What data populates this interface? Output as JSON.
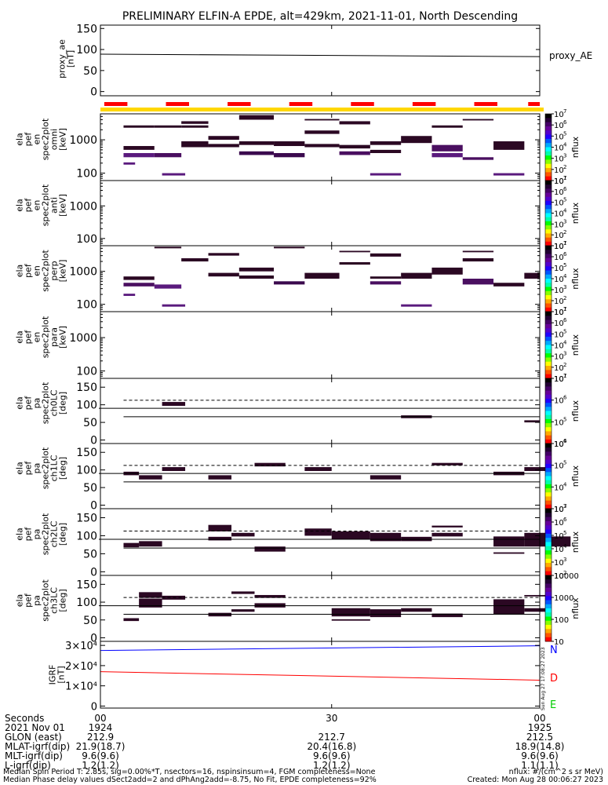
{
  "title": "PRELIMINARY ELFIN-A EPDE, alt=429km, 2021-11-01, North Descending",
  "time_axis": {
    "start_seconds": 0,
    "end_seconds": 57,
    "ticks": [
      0,
      30,
      57
    ]
  },
  "footer": {
    "rows": [
      {
        "label": "Seconds",
        "values": [
          "00",
          "30",
          "00"
        ]
      },
      {
        "label": "2021 Nov 01",
        "values": [
          "1924",
          "",
          "1925"
        ]
      },
      {
        "label": "GLON (east)",
        "values": [
          "212.9",
          "212.7",
          "212.5"
        ]
      },
      {
        "label": "MLAT-igrf(dip)",
        "values": [
          "21.9(18.7)",
          "20.4(16.8)",
          "18.9(14.8)"
        ]
      },
      {
        "label": "MLT-igrf(dip)",
        "values": [
          "9.6(9.6)",
          "9.6(9.6)",
          "9.6(9.6)"
        ]
      },
      {
        "label": "L-igrf(dip)",
        "values": [
          "1.2(1.2)",
          "1.2(1.2)",
          "1.1(1.1)"
        ]
      }
    ],
    "note1": "Median Spin Period T: 2.85s, sig=0.00%*T, nsectors=16, nspinsinsum=4, FGM completeness=None",
    "note2": "Median Phase delay values dSect2add=2 and dPhAng2add=-8.75, No Fit, EPDE completeness=92%",
    "units_note": "nflux: #/(cm^2 s sr MeV)",
    "created": "Created: Mon Aug 28 00:06:27 2023",
    "side_stamp": "Sun Aug 27 17:08:27 2023"
  },
  "chart_data": [
    {
      "type": "line",
      "name": "proxy_ae",
      "ylabel": "proxy_ae [nT]",
      "legend": "proxy_AE",
      "yticks": [
        0,
        50,
        100,
        150
      ],
      "ylim": [
        -10,
        158
      ],
      "x": [
        0,
        57
      ],
      "y": [
        89,
        83
      ]
    },
    {
      "type": "bar",
      "name": "sector-indicator",
      "color_bar": "#ffd700",
      "color_marks": "#ff0000",
      "marks": [
        [
          0.5,
          3.5
        ],
        [
          8.5,
          11.5
        ],
        [
          16.5,
          19.5
        ],
        [
          24.5,
          27.5
        ],
        [
          32.5,
          35.5
        ],
        [
          40.5,
          43.5
        ],
        [
          48.5,
          51.5
        ],
        [
          55.5,
          57
        ]
      ]
    },
    {
      "type": "heatmap",
      "name": "spec-omni",
      "ylabel": "ela pef en spec2plot omni [keV]",
      "yscale": "log",
      "ylim": [
        60,
        6000
      ],
      "yticks": [
        100,
        1000
      ],
      "colorbar": {
        "label": "nflux",
        "ticks": [
          "10",
          "10",
          "10",
          "10",
          "10",
          "10",
          "10"
        ],
        "exps": [
          "1",
          "2",
          "3",
          "4",
          "5",
          "6",
          "7"
        ]
      },
      "cells": [
        [
          3,
          7,
          2300,
          2700,
          "#2b0823"
        ],
        [
          3,
          7,
          500,
          650,
          "#2b0823"
        ],
        [
          3,
          7,
          300,
          400,
          "#5a1a7d"
        ],
        [
          3,
          4.5,
          180,
          210,
          "#5a1a7d"
        ],
        [
          7,
          10.5,
          2300,
          2700,
          "#2b0823"
        ],
        [
          10.5,
          14,
          2300,
          2700,
          "#2b0823"
        ],
        [
          7,
          10.5,
          300,
          400,
          "#4a0f60"
        ],
        [
          10.5,
          14,
          600,
          900,
          "#2b0823"
        ],
        [
          10.5,
          14,
          3000,
          3600,
          "#2b0823"
        ],
        [
          14,
          18,
          1000,
          1300,
          "#2b0823"
        ],
        [
          14,
          18,
          600,
          750,
          "#2b0823"
        ],
        [
          18,
          22.5,
          4000,
          5500,
          "#2b0823"
        ],
        [
          18,
          22.5,
          700,
          900,
          "#2b0823"
        ],
        [
          18,
          22.5,
          350,
          450,
          "#3b0a4e"
        ],
        [
          22.5,
          26.5,
          650,
          900,
          "#2b0823"
        ],
        [
          22.5,
          26.5,
          300,
          400,
          "#3b0a4e"
        ],
        [
          26.5,
          31,
          3800,
          4200,
          "#2b0823"
        ],
        [
          26.5,
          31,
          1500,
          1900,
          "#2b0823"
        ],
        [
          26.5,
          31,
          600,
          750,
          "#2b0823"
        ],
        [
          31,
          35,
          2900,
          3600,
          "#2b0823"
        ],
        [
          31,
          35,
          550,
          700,
          "#2b0823"
        ],
        [
          31,
          35,
          350,
          450,
          "#4a0f60"
        ],
        [
          35,
          39,
          700,
          900,
          "#2b0823"
        ],
        [
          35,
          39,
          400,
          500,
          "#2b0823"
        ],
        [
          39,
          43,
          800,
          1300,
          "#2b0823"
        ],
        [
          43,
          47,
          2300,
          2700,
          "#2b0823"
        ],
        [
          43,
          47,
          450,
          700,
          "#4a0f60"
        ],
        [
          43,
          47,
          300,
          400,
          "#5a1a7d"
        ],
        [
          47,
          51,
          3800,
          4200,
          "#2b0823"
        ],
        [
          47,
          51,
          250,
          300,
          "#4a0f60"
        ],
        [
          51,
          55,
          500,
          900,
          "#2b0823"
        ],
        [
          8,
          11,
          85,
          100,
          "#5a1a7d"
        ],
        [
          35,
          39,
          85,
          100,
          "#5a1a7d"
        ],
        [
          51,
          55,
          85,
          100,
          "#5a1a7d"
        ]
      ]
    },
    {
      "type": "heatmap",
      "name": "spec-anti",
      "ylabel": "ela pef en spec2plot anti [keV]",
      "yscale": "log",
      "ylim": [
        60,
        6000
      ],
      "yticks": [
        100,
        1000
      ],
      "colorbar": {
        "label": "nflux",
        "ticks": [
          "10",
          "10",
          "10",
          "10",
          "10",
          "10",
          "10"
        ],
        "exps": [
          "1",
          "2",
          "3",
          "4",
          "5",
          "6",
          "7"
        ]
      },
      "cells": []
    },
    {
      "type": "heatmap",
      "name": "spec-perp",
      "ylabel": "ela pef en spec2plot perp [keV]",
      "yscale": "log",
      "ylim": [
        60,
        6000
      ],
      "yticks": [
        100,
        1000
      ],
      "colorbar": {
        "label": "nflux",
        "ticks": [
          "10",
          "10",
          "10",
          "10",
          "10",
          "10",
          "10"
        ],
        "exps": [
          "1",
          "2",
          "3",
          "4",
          "5",
          "6",
          "7"
        ]
      },
      "cells": [
        [
          7,
          10.5,
          5000,
          5600,
          "#2b0823"
        ],
        [
          10.5,
          14,
          2000,
          2500,
          "#2b0823"
        ],
        [
          3,
          7,
          550,
          700,
          "#2b0823"
        ],
        [
          3,
          7,
          350,
          450,
          "#4a0f60"
        ],
        [
          7,
          10.5,
          300,
          400,
          "#5a1a7d"
        ],
        [
          3,
          4.5,
          180,
          210,
          "#5a1a7d"
        ],
        [
          14,
          18,
          3000,
          3600,
          "#2b0823"
        ],
        [
          14,
          18,
          700,
          900,
          "#2b0823"
        ],
        [
          18,
          22.5,
          1000,
          1300,
          "#2b0823"
        ],
        [
          18,
          22.5,
          600,
          750,
          "#2b0823"
        ],
        [
          22.5,
          26.5,
          5000,
          5600,
          "#2b0823"
        ],
        [
          22.5,
          26.5,
          400,
          500,
          "#3b0a4e"
        ],
        [
          26.5,
          31,
          600,
          900,
          "#2b0823"
        ],
        [
          31,
          35,
          3800,
          4200,
          "#2b0823"
        ],
        [
          31,
          35,
          1600,
          1900,
          "#2b0823"
        ],
        [
          35,
          39,
          2800,
          3500,
          "#2b0823"
        ],
        [
          35,
          39,
          600,
          700,
          "#2b0823"
        ],
        [
          35,
          39,
          400,
          500,
          "#4a0f60"
        ],
        [
          39,
          43,
          600,
          900,
          "#2b0823"
        ],
        [
          43,
          47,
          800,
          1300,
          "#2b0823"
        ],
        [
          47,
          51,
          3800,
          4200,
          "#2b0823"
        ],
        [
          47,
          51,
          2000,
          2500,
          "#2b0823"
        ],
        [
          47,
          51,
          400,
          600,
          "#4a0f60"
        ],
        [
          51,
          55,
          350,
          450,
          "#2b0823"
        ],
        [
          55,
          57,
          600,
          900,
          "#2b0823"
        ],
        [
          8,
          11,
          85,
          100,
          "#5a1a7d"
        ],
        [
          39,
          43,
          85,
          100,
          "#5a1a7d"
        ]
      ]
    },
    {
      "type": "heatmap",
      "name": "spec-para",
      "ylabel": "ela pef en spec2plot para [keV]",
      "yscale": "log",
      "ylim": [
        60,
        6000
      ],
      "yticks": [
        100,
        1000
      ],
      "colorbar": {
        "label": "nflux",
        "ticks": [
          "10",
          "10",
          "10",
          "10",
          "10",
          "10",
          "10"
        ],
        "exps": [
          "1",
          "2",
          "3",
          "4",
          "5",
          "6",
          "7"
        ]
      },
      "cells": []
    },
    {
      "type": "heatmap",
      "name": "pa-ch0LC",
      "ylabel": "ela pef pa spec2plot ch0LC [deg]",
      "yscale": "linear",
      "ylim": [
        -10,
        175
      ],
      "yticks": [
        0,
        50,
        100,
        150
      ],
      "solid_line": 90,
      "dashed_line": 113,
      "lower_line": 66,
      "colorbar": {
        "label": "nflux",
        "ticks": [
          "10",
          "10",
          "10",
          "10"
        ],
        "exps": [
          "4",
          "5",
          "6",
          "7"
        ]
      },
      "cells": [
        [
          8,
          11,
          97,
          108,
          "#2b0823"
        ],
        [
          39,
          43,
          62,
          70,
          "#2b0823"
        ],
        [
          55,
          57,
          50,
          56,
          "#2b0823"
        ]
      ]
    },
    {
      "type": "heatmap",
      "name": "pa-ch1LC",
      "ylabel": "ela pef pa spec2plot ch1LC [deg]",
      "yscale": "linear",
      "ylim": [
        -10,
        175
      ],
      "yticks": [
        0,
        50,
        100,
        150
      ],
      "solid_line": 90,
      "dashed_line": 113,
      "lower_line": 66,
      "colorbar": {
        "label": "nflux",
        "ticks": [
          "10",
          "10",
          "10",
          "10"
        ],
        "exps": [
          "3",
          "4",
          "5",
          "6"
        ]
      },
      "cells": [
        [
          3,
          5,
          85,
          95,
          "#2b0823"
        ],
        [
          5,
          8,
          73,
          85,
          "#2b0823"
        ],
        [
          8,
          11,
          97,
          108,
          "#2b0823"
        ],
        [
          14,
          17,
          73,
          85,
          "#2b0823"
        ],
        [
          20,
          24,
          110,
          120,
          "#2b0823"
        ],
        [
          26.5,
          30,
          97,
          108,
          "#2b0823"
        ],
        [
          35,
          39,
          73,
          85,
          "#2b0823"
        ],
        [
          43,
          47,
          113,
          120,
          "#2b0823"
        ],
        [
          51,
          55,
          85,
          95,
          "#2b0823"
        ],
        [
          55,
          58,
          97,
          108,
          "#2b0823"
        ]
      ]
    },
    {
      "type": "heatmap",
      "name": "pa-ch2LC",
      "ylabel": "ela pef pa spec2plot ch2LC [deg]",
      "yscale": "linear",
      "ylim": [
        -10,
        175
      ],
      "yticks": [
        0,
        50,
        100,
        150
      ],
      "solid_line": 90,
      "dashed_line": 113,
      "lower_line": 66,
      "colorbar": {
        "label": "nflux",
        "ticks": [
          "10",
          "10",
          "10",
          "10",
          "10",
          "10"
        ],
        "exps": [
          "2",
          "3",
          "4",
          "5",
          "6",
          "7"
        ]
      },
      "cells": [
        [
          3,
          5,
          68,
          80,
          "#2b0823"
        ],
        [
          5,
          8,
          70,
          85,
          "#2b0823"
        ],
        [
          14,
          17,
          112,
          130,
          "#2b0823"
        ],
        [
          14,
          17,
          87,
          97,
          "#2b0823"
        ],
        [
          17,
          20,
          98,
          108,
          "#2b0823"
        ],
        [
          20,
          24,
          56,
          70,
          "#2b0823"
        ],
        [
          26.5,
          30,
          100,
          120,
          "#2b0823"
        ],
        [
          30,
          35,
          90,
          112,
          "#2b0823"
        ],
        [
          35,
          39,
          85,
          108,
          "#2b0823"
        ],
        [
          39,
          43,
          85,
          97,
          "#2b0823"
        ],
        [
          43,
          47,
          98,
          108,
          "#2b0823"
        ],
        [
          43,
          47,
          123,
          128,
          "#2b0823"
        ],
        [
          51,
          55,
          70,
          98,
          "#2b0823"
        ],
        [
          55,
          58,
          70,
          108,
          "#2b0823"
        ],
        [
          58,
          61,
          70,
          98,
          "#2b0823"
        ],
        [
          51,
          55,
          50,
          54,
          "#2b0823"
        ]
      ]
    },
    {
      "type": "heatmap",
      "name": "pa-ch3LC",
      "ylabel": "ela pef pa spec2plot ch3LC [deg]",
      "yscale": "linear",
      "ylim": [
        -10,
        175
      ],
      "yticks": [
        0,
        50,
        100,
        150
      ],
      "solid_line": 90,
      "dashed_line": 113,
      "lower_line": 66,
      "colorbar": {
        "label": "nflux",
        "ticks": [
          "10",
          "100",
          "1000",
          "10000"
        ],
        "exps": [
          "",
          "",
          "",
          ""
        ]
      },
      "cells": [
        [
          3,
          5,
          47,
          55,
          "#2b0823"
        ],
        [
          5,
          8,
          112,
          128,
          "#2b0823"
        ],
        [
          5,
          8,
          85,
          110,
          "#2b0823"
        ],
        [
          8,
          11,
          107,
          118,
          "#2b0823"
        ],
        [
          14,
          17,
          60,
          70,
          "#2b0823"
        ],
        [
          17,
          20,
          123,
          130,
          "#2b0823"
        ],
        [
          17,
          20,
          73,
          80,
          "#2b0823"
        ],
        [
          20,
          24,
          112,
          120,
          "#2b0823"
        ],
        [
          20,
          24,
          85,
          97,
          "#2b0823"
        ],
        [
          30,
          35,
          60,
          83,
          "#2b0823"
        ],
        [
          35,
          39,
          58,
          80,
          "#2b0823"
        ],
        [
          39,
          43,
          73,
          83,
          "#2b0823"
        ],
        [
          43,
          47,
          58,
          68,
          "#2b0823"
        ],
        [
          51,
          55,
          67,
          108,
          "#2b0823"
        ],
        [
          55,
          58,
          73,
          83,
          "#2b0823"
        ],
        [
          55,
          58,
          116,
          120,
          "#2b0823"
        ],
        [
          30,
          35,
          48,
          52,
          "#2b0823"
        ]
      ]
    },
    {
      "type": "line",
      "name": "igrf",
      "ylabel": "IGRF [nT]",
      "yticks": [
        0,
        10000,
        20000,
        30000
      ],
      "ytick_labels": [
        "0",
        "1×10⁴",
        "2×10⁴",
        "3×10⁴"
      ],
      "ylim": [
        -1000,
        32000
      ],
      "series": [
        {
          "name": "N",
          "color": "#0000ff",
          "x": [
            0,
            57
          ],
          "y": [
            27500,
            29800
          ]
        },
        {
          "name": "D",
          "color": "#ff0000",
          "x": [
            0,
            57
          ],
          "y": [
            17000,
            12800
          ]
        },
        {
          "name": "E",
          "color": "#00cc00",
          "x": [
            0,
            57
          ],
          "y": [
            -1000,
            -1000
          ]
        }
      ]
    }
  ]
}
